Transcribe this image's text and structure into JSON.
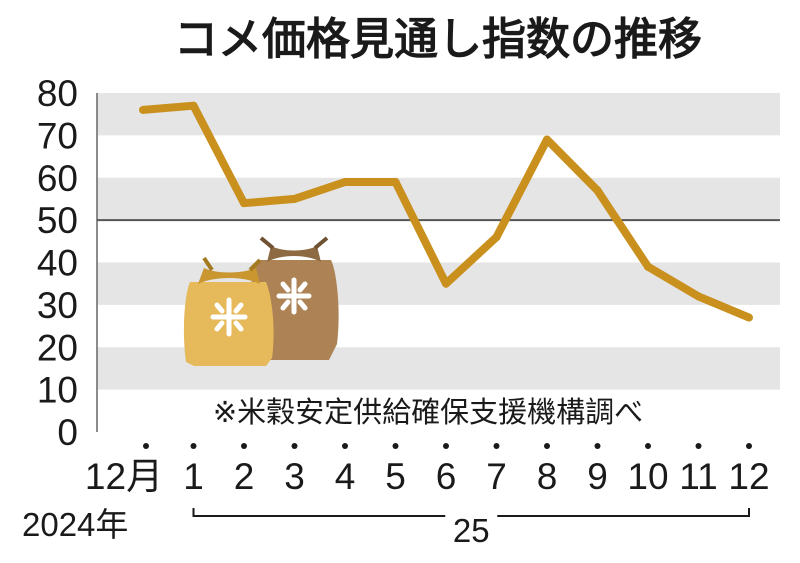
{
  "chart_data": {
    "type": "line",
    "title": "コメ価格見通し指数の推移",
    "annotation": "※米穀安定供給確保支援機構調べ",
    "x": [
      "12月",
      "1",
      "2",
      "3",
      "4",
      "5",
      "6",
      "7",
      "8",
      "9",
      "10",
      "11",
      "12"
    ],
    "year_labels": [
      "2024年",
      "25"
    ],
    "series": [
      {
        "values": [
          76,
          77,
          54,
          55,
          59,
          59,
          35,
          46,
          69,
          57,
          39,
          32,
          27
        ]
      }
    ],
    "ylim": [
      0,
      80
    ],
    "yticks": [
      0,
      10,
      20,
      30,
      40,
      50,
      60,
      70,
      80
    ],
    "reference_line": 50,
    "grid": "alternating horizontal bands",
    "colors": {
      "line": "#c9901e",
      "band": "#e5e5e5",
      "reference": "#555555"
    },
    "icon": "rice-bag-icon"
  }
}
